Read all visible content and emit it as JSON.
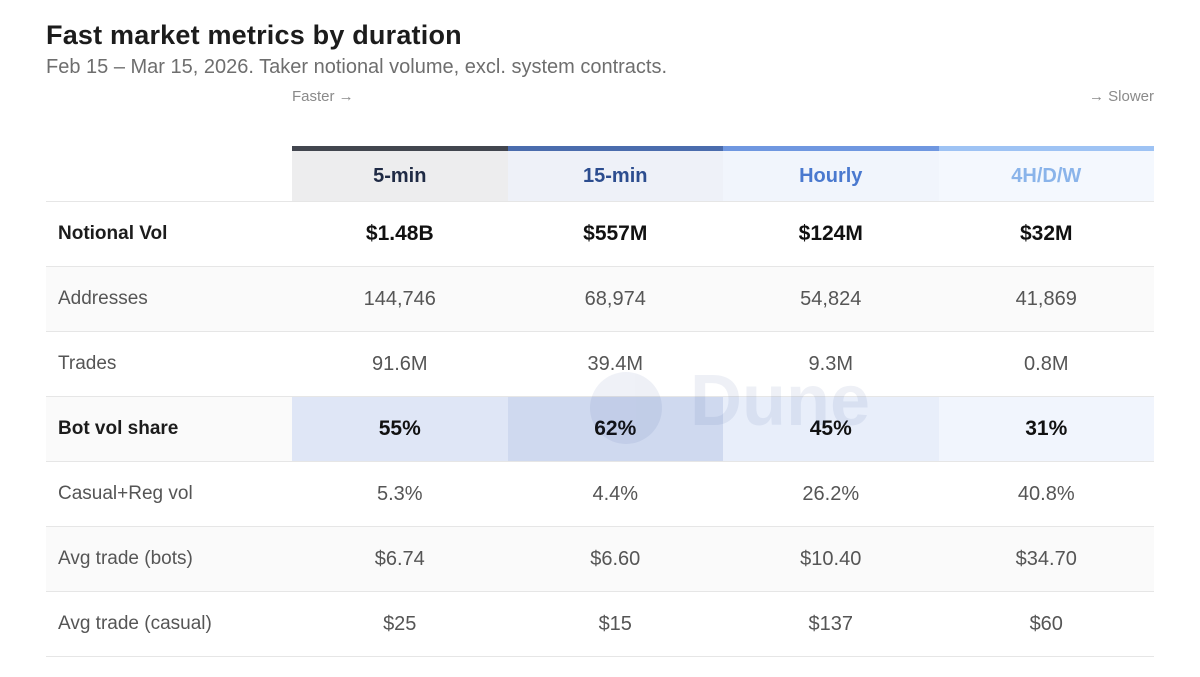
{
  "title": "Fast market metrics by duration",
  "subtitle": "Feb 15 – Mar 15, 2026. Taker notional volume, excl. system contracts.",
  "faster_label": "Faster →",
  "slower_label": "→ Slower",
  "watermark": "Dune",
  "columns": [
    {
      "label": "5-min",
      "accent": "#42464f",
      "header_bg": "#ededee",
      "text": "#1f2a44"
    },
    {
      "label": "15-min",
      "accent": "#4a6cad",
      "header_bg": "#eef1f8",
      "text": "#2c4d8f"
    },
    {
      "label": "Hourly",
      "accent": "#6f97e0",
      "header_bg": "#f1f5fc",
      "text": "#4a79cf"
    },
    {
      "label": "4H/D/W",
      "accent": "#9ec3f4",
      "header_bg": "#f4f8fe",
      "text": "#8ab4ea"
    }
  ],
  "rows": [
    {
      "label": "Notional Vol",
      "values": [
        "$1.48B",
        "$557M",
        "$124M",
        "$32M"
      ],
      "bold": true
    },
    {
      "label": "Addresses",
      "values": [
        "144,746",
        "68,974",
        "54,824",
        "41,869"
      ],
      "bold": false
    },
    {
      "label": "Trades",
      "values": [
        "91.6M",
        "39.4M",
        "9.3M",
        "0.8M"
      ],
      "bold": false
    },
    {
      "label": "Bot vol share",
      "values": [
        "55%",
        "62%",
        "45%",
        "31%"
      ],
      "bold": true,
      "highlight": [
        "#dfe6f6",
        "#cfd9ef",
        "#e8eefa",
        "#f1f5fd"
      ]
    },
    {
      "label": "Casual+Reg vol",
      "values": [
        "5.3%",
        "4.4%",
        "26.2%",
        "40.8%"
      ],
      "bold": false
    },
    {
      "label": "Avg trade (bots)",
      "values": [
        "$6.74",
        "$6.60",
        "$10.40",
        "$34.70"
      ],
      "bold": false
    },
    {
      "label": "Avg trade (casual)",
      "values": [
        "$25",
        "$15",
        "$137",
        "$60"
      ],
      "bold": false
    }
  ]
}
